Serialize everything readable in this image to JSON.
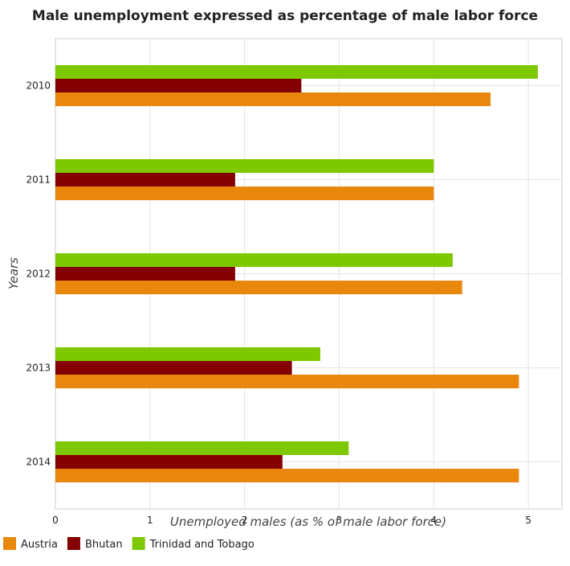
{
  "chart_data": {
    "type": "bar",
    "orientation": "horizontal",
    "title": "Male unemployment expressed as percentage of male labor force",
    "xlabel": "Unemployed males (as % of male labor force)",
    "ylabel": "Years",
    "categories": [
      "2010",
      "2011",
      "2012",
      "2013",
      "2014"
    ],
    "series": [
      {
        "name": "Austria",
        "color": "#e8870c",
        "values": [
          4.6,
          4.0,
          4.3,
          4.9,
          4.9
        ]
      },
      {
        "name": "Bhutan",
        "color": "#850000",
        "values": [
          2.6,
          1.9,
          1.9,
          2.5,
          2.4
        ]
      },
      {
        "name": "Trinidad and Tobago",
        "color": "#7ec800",
        "values": [
          5.1,
          4.0,
          4.2,
          2.8,
          3.1
        ]
      }
    ],
    "xlim": [
      0,
      5.355
    ],
    "xticks": [
      "0",
      "1",
      "2",
      "3",
      "4",
      "5"
    ],
    "grid": true,
    "legend_position": "bottom-left"
  }
}
